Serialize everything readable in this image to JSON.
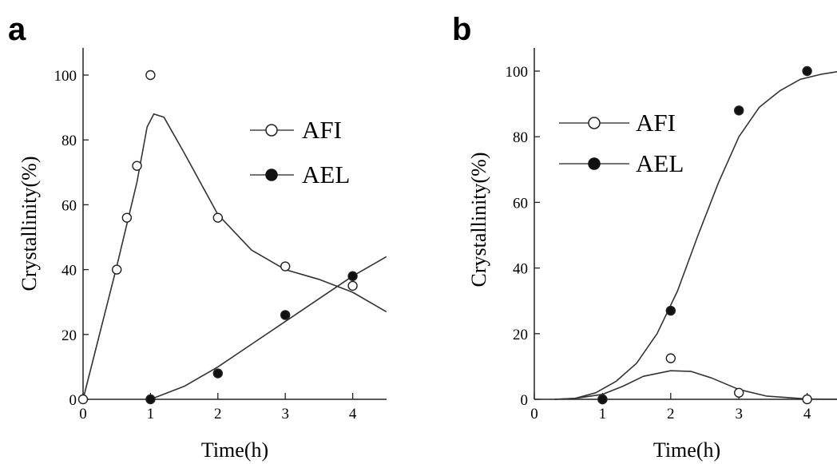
{
  "chart_data": [
    {
      "type": "scatter",
      "panel_label": "a",
      "xlabel": "Time(h)",
      "ylabel": "Crystallinity(%)",
      "xlim": [
        0,
        4.5
      ],
      "ylim": [
        0,
        110
      ],
      "x_ticks": [
        "0",
        "1",
        "2",
        "3",
        "4"
      ],
      "y_ticks": [
        "0",
        "20",
        "40",
        "60",
        "80",
        "100"
      ],
      "legend_position": "top-right",
      "series": [
        {
          "name": "AFI",
          "marker": "open-circle",
          "points": [
            [
              0,
              0
            ],
            [
              0.5,
              40
            ],
            [
              0.65,
              56
            ],
            [
              0.8,
              72
            ],
            [
              1.0,
              100
            ],
            [
              2.0,
              56
            ],
            [
              3.0,
              41
            ],
            [
              4.0,
              35
            ]
          ],
          "fit": [
            [
              0,
              0
            ],
            [
              0.5,
              41
            ],
            [
              0.8,
              67
            ],
            [
              0.95,
              84
            ],
            [
              1.05,
              88
            ],
            [
              1.2,
              87
            ],
            [
              1.5,
              76
            ],
            [
              2.0,
              57
            ],
            [
              2.5,
              46
            ],
            [
              3.0,
              40
            ],
            [
              3.5,
              37
            ],
            [
              4.0,
              33
            ],
            [
              4.5,
              27
            ]
          ]
        },
        {
          "name": "AEL",
          "marker": "filled-circle",
          "points": [
            [
              1.0,
              0
            ],
            [
              2.0,
              8
            ],
            [
              3.0,
              26
            ],
            [
              4.0,
              38
            ]
          ],
          "fit": [
            [
              1.0,
              0
            ],
            [
              1.5,
              4
            ],
            [
              2.0,
              10
            ],
            [
              2.5,
              17
            ],
            [
              3.0,
              24
            ],
            [
              3.5,
              31
            ],
            [
              4.0,
              38
            ],
            [
              4.5,
              44
            ]
          ]
        }
      ]
    },
    {
      "type": "scatter",
      "panel_label": "b",
      "xlabel": "Time(h)",
      "ylabel": "Crystallinity(%)",
      "xlim": [
        0,
        4.5
      ],
      "ylim": [
        0,
        110
      ],
      "x_ticks": [
        "0",
        "1",
        "2",
        "3",
        "4"
      ],
      "y_ticks": [
        "0",
        "20",
        "40",
        "60",
        "80",
        "100"
      ],
      "legend_position": "top-left",
      "series": [
        {
          "name": "AFI",
          "marker": "open-circle",
          "points": [
            [
              1.0,
              0
            ],
            [
              2.0,
              12.5
            ],
            [
              3.0,
              2
            ],
            [
              4.0,
              0
            ]
          ],
          "fit": [
            [
              0.3,
              0
            ],
            [
              0.6,
              0.3
            ],
            [
              1.0,
              1.5
            ],
            [
              1.3,
              4
            ],
            [
              1.6,
              7
            ],
            [
              2.0,
              8.7
            ],
            [
              2.3,
              8.5
            ],
            [
              2.6,
              6.5
            ],
            [
              3.0,
              3
            ],
            [
              3.4,
              1
            ],
            [
              4.0,
              0.1
            ],
            [
              4.5,
              0
            ]
          ]
        },
        {
          "name": "AEL",
          "marker": "filled-circle",
          "points": [
            [
              1.0,
              0
            ],
            [
              2.0,
              27
            ],
            [
              3.0,
              88
            ],
            [
              4.0,
              100
            ]
          ],
          "fit": [
            [
              0.3,
              0
            ],
            [
              0.6,
              0.3
            ],
            [
              0.9,
              2
            ],
            [
              1.2,
              5.5
            ],
            [
              1.5,
              11
            ],
            [
              1.8,
              20
            ],
            [
              2.1,
              33
            ],
            [
              2.4,
              50
            ],
            [
              2.7,
              66
            ],
            [
              3.0,
              80
            ],
            [
              3.3,
              89
            ],
            [
              3.6,
              94
            ],
            [
              3.9,
              97.5
            ],
            [
              4.2,
              99
            ],
            [
              4.5,
              100
            ]
          ]
        }
      ]
    }
  ]
}
